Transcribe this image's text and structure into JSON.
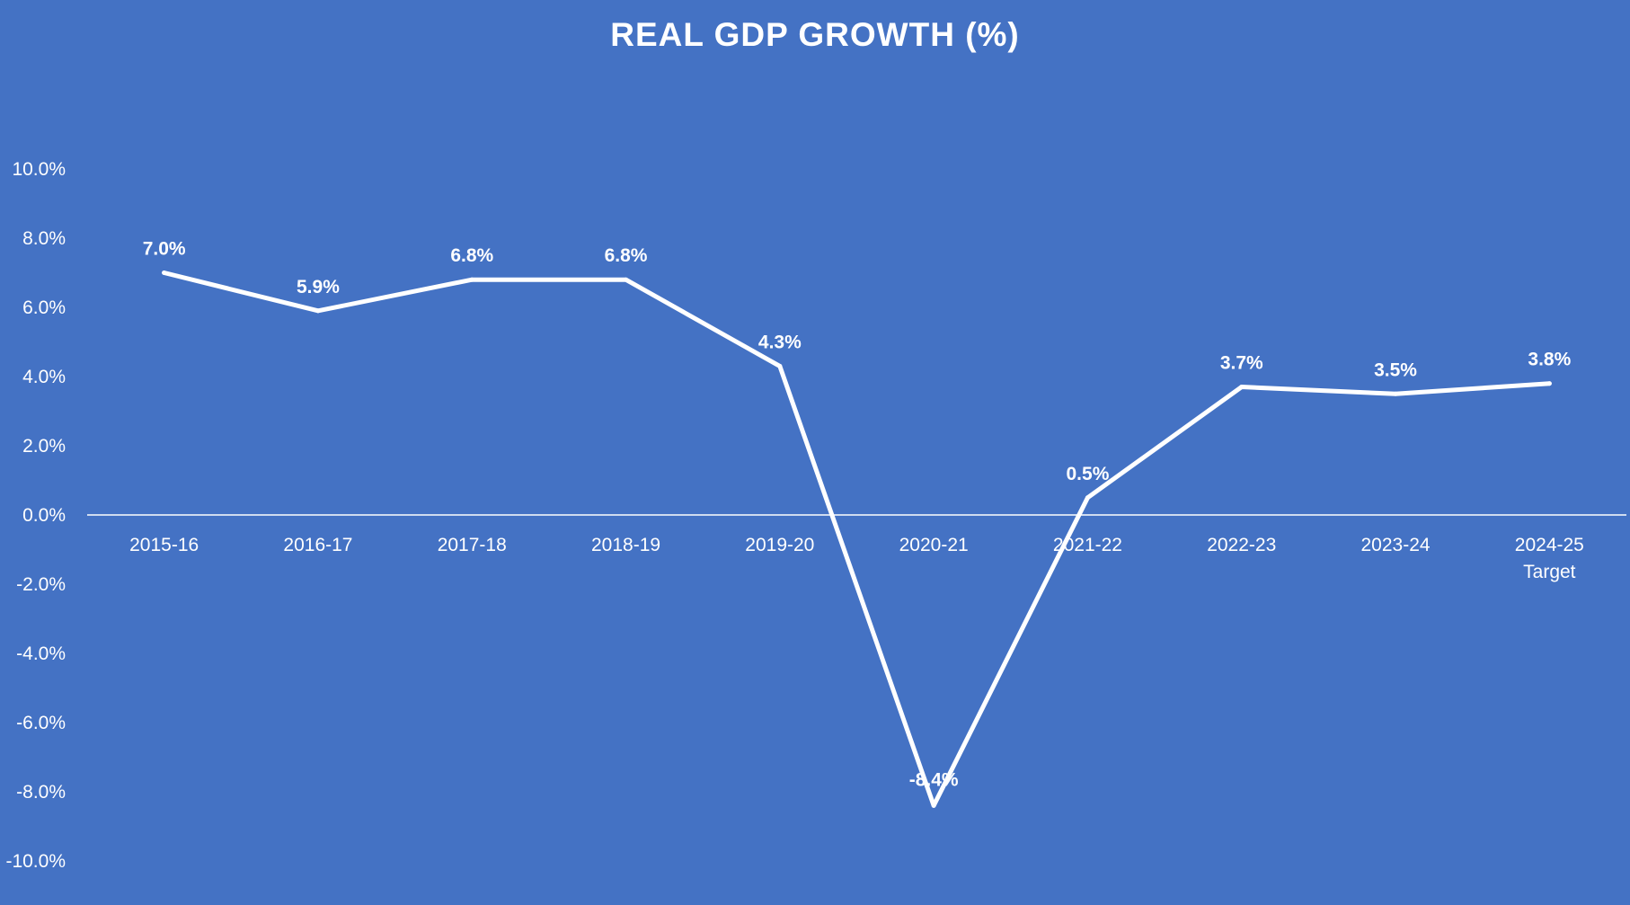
{
  "chart_data": {
    "type": "line",
    "title": "REAL GDP GROWTH (%)",
    "xlabel": "",
    "ylabel": "",
    "categories": [
      "2015-16",
      "2016-17",
      "2017-18",
      "2018-19",
      "2019-20",
      "2020-21",
      "2021-22",
      "2022-23",
      "2023-24",
      "2024-25\nTarget"
    ],
    "values": [
      7.0,
      5.9,
      6.8,
      6.8,
      4.3,
      -8.4,
      0.5,
      3.7,
      3.5,
      3.8
    ],
    "data_labels": [
      "7.0%",
      "5.9%",
      "6.8%",
      "6.8%",
      "4.3%",
      "-8.4%",
      "0.5%",
      "3.7%",
      "3.5%",
      "3.8%"
    ],
    "ylim": [
      -10,
      10
    ],
    "yticks": [
      10,
      8,
      6,
      4,
      2,
      0,
      -2,
      -4,
      -6,
      -8,
      -10
    ],
    "ytick_labels": [
      "10.0%",
      "8.0%",
      "6.0%",
      "4.0%",
      "2.0%",
      "0.0%",
      "-2.0%",
      "-4.0%",
      "-6.0%",
      "-8.0%",
      "-10.0%"
    ],
    "grid": false,
    "drop_lines": true,
    "colors": {
      "background": "#4472c4",
      "line": "#ffffff",
      "text": "#ffffff"
    }
  }
}
